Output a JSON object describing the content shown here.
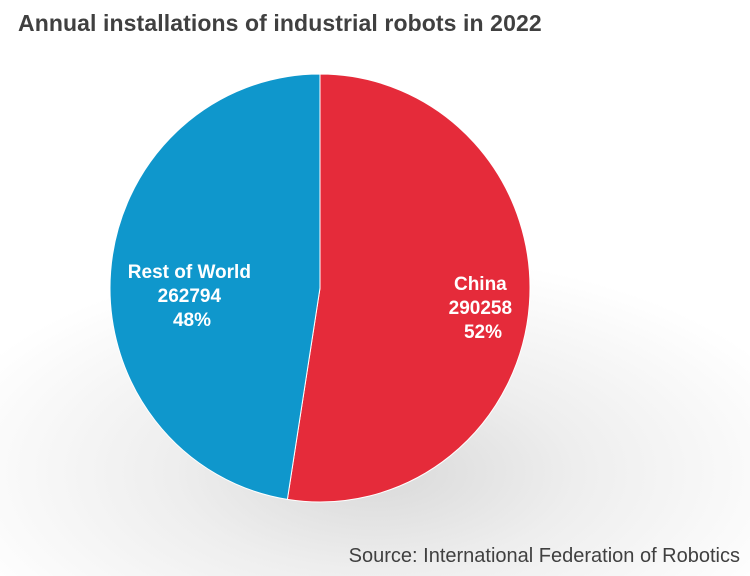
{
  "chart_data": {
    "type": "pie",
    "title": "Annual installations of industrial robots in 2022",
    "source": "Source: International Federation of Robotics",
    "slices": [
      {
        "label": "China",
        "value": 290258,
        "percent_label": "52%",
        "color": "#e52b3a"
      },
      {
        "label": "Rest of World",
        "value": 262794,
        "percent_label": "48%",
        "color": "#0f97cc"
      }
    ]
  }
}
